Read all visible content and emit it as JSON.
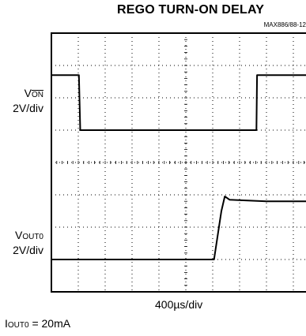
{
  "chart_data": {
    "type": "line",
    "title": "REGO TURN-ON DELAY",
    "figure_id": "MAX886/88-12",
    "x_scale_label": "400µs/div",
    "condition": {
      "prefix": "I",
      "subscript": "OUT0",
      "suffix": " = 20mA"
    },
    "time_divisions": 10,
    "x_unit": "µs",
    "x_range": [
      0,
      4000
    ],
    "grid": "dotted oscilloscope graticule, 10 × 8 divisions, center crosshair",
    "series": [
      {
        "name": "VON",
        "label_prefix": "V",
        "label_overline": "ON",
        "scale_label": "2V/div",
        "y_unit": "div",
        "points": [
          [
            0,
            1.7
          ],
          [
            410,
            1.7
          ],
          [
            430,
            0
          ],
          [
            3050,
            0
          ],
          [
            3060,
            1.7
          ],
          [
            4000,
            1.7
          ]
        ]
      },
      {
        "name": "VOUT0",
        "label_prefix": "V",
        "label_subscript": "OUT0",
        "scale_label": "2V/div",
        "y_unit": "div",
        "points": [
          [
            0,
            0
          ],
          [
            2420,
            0
          ],
          [
            2530,
            1.5
          ],
          [
            2580,
            1.95
          ],
          [
            2650,
            1.85
          ],
          [
            3200,
            1.8
          ],
          [
            4000,
            1.8
          ]
        ]
      }
    ]
  }
}
